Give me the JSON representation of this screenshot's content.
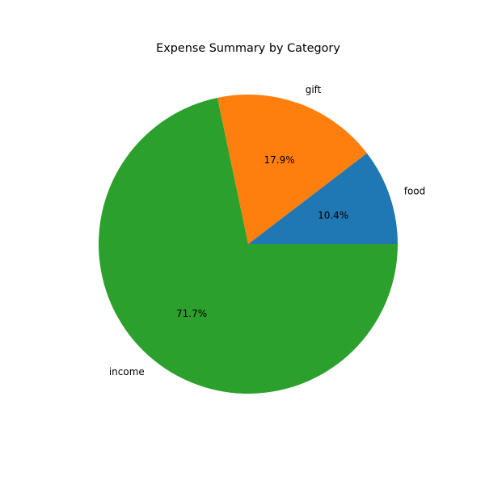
{
  "chart_data": {
    "type": "pie",
    "title": "Expense Summary by Category",
    "categories": [
      "food",
      "gift",
      "income"
    ],
    "values": [
      10.4,
      17.9,
      71.7
    ],
    "percent_labels": [
      "10.4%",
      "17.9%",
      "71.7%"
    ],
    "colors": [
      "#1f77b4",
      "#ff7f0e",
      "#2ca02c"
    ],
    "start_angle": 0,
    "direction": "counterclockwise",
    "legend": "none"
  }
}
